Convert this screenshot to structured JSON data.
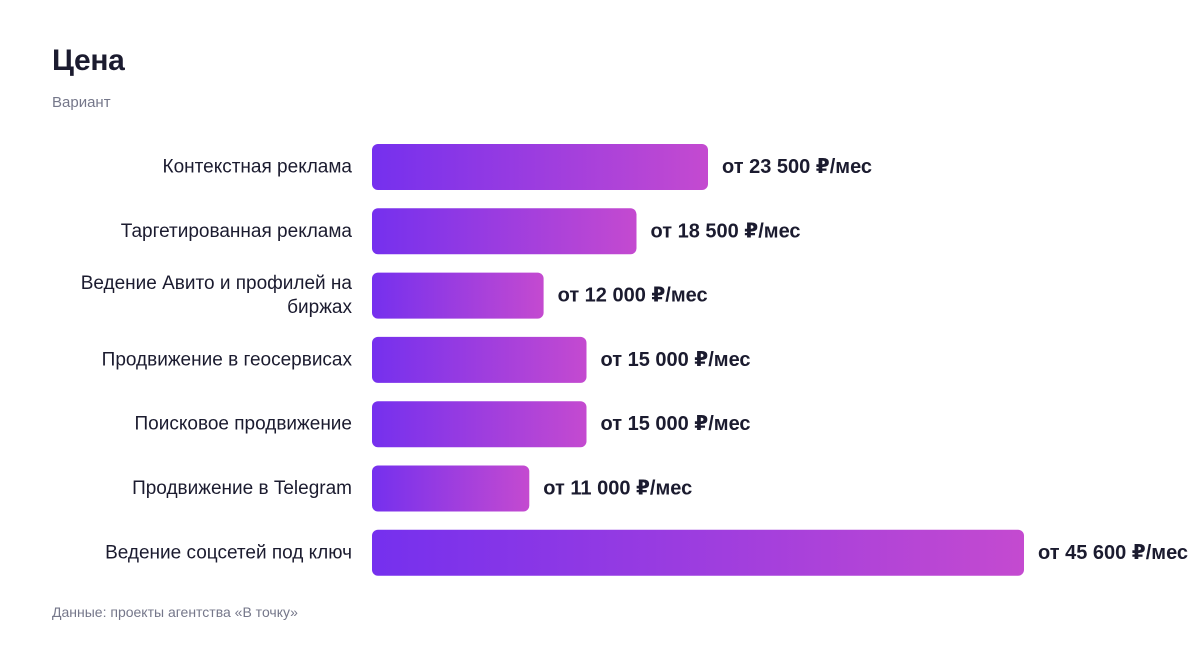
{
  "title": "Цена",
  "subtitle": "Вариант",
  "source": "Данные: проекты агентства «В точку»",
  "colors": {
    "bar_gradient_start": "#7530ee",
    "bar_gradient_end": "#c44ad0",
    "text": "#1b1b2f",
    "muted": "#75778a"
  },
  "chart_data": {
    "type": "bar",
    "orientation": "horizontal",
    "categories": [
      "Контекстная реклама",
      "Таргетированная реклама",
      "Ведение Авито и профилей на биржах",
      "Продвижение в геосервисах",
      "Поисковое продвижение",
      "Продвижение в Telegram",
      "Ведение соцсетей под ключ"
    ],
    "category_lines": [
      [
        "Контекстная реклама"
      ],
      [
        "Таргетированная реклама"
      ],
      [
        "Ведение Авито и профилей на",
        "биржах"
      ],
      [
        "Продвижение в геосервисах"
      ],
      [
        "Поисковое продвижение"
      ],
      [
        "Продвижение в Telegram"
      ],
      [
        "Ведение соцсетей под ключ"
      ]
    ],
    "values": [
      23500,
      18500,
      12000,
      15000,
      15000,
      11000,
      45600
    ],
    "value_labels": [
      "от 23 500 ₽/мес",
      "от 18 500 ₽/мес",
      "от 12 000 ₽/мес",
      "от 15 000 ₽/мес",
      "от 15 000 ₽/мес",
      "от 11 000 ₽/мес",
      "от 45 600 ₽/мес"
    ],
    "xlim": [
      0,
      45600
    ],
    "grid": false,
    "legend": "none"
  }
}
